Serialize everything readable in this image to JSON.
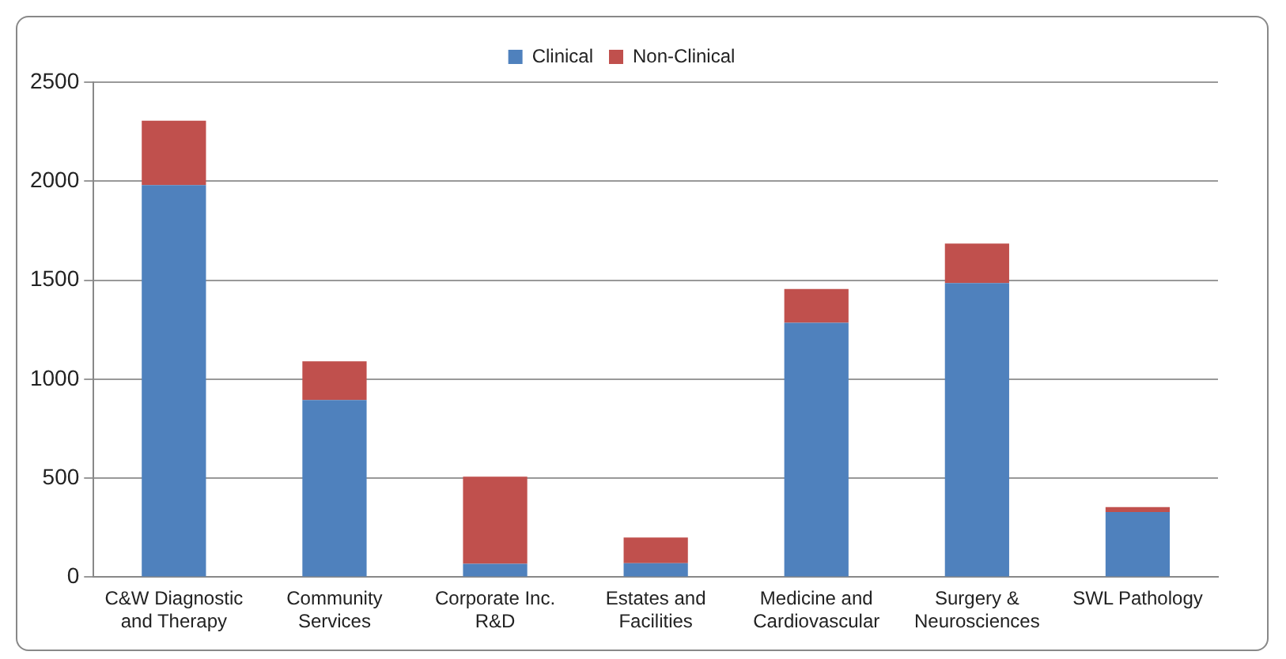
{
  "chart_data": {
    "type": "bar",
    "stacked": true,
    "categories": [
      "C&W Diagnostic and Therapy",
      "Community Services",
      "Corporate Inc. R&D",
      "Estates and Facilities",
      "Medicine and Cardiovascular",
      "Surgery & Neurosciences",
      "SWL Pathology"
    ],
    "series": [
      {
        "name": "Clinical",
        "color": "#4f81bd",
        "values": [
          1980,
          895,
          67,
          70,
          1285,
          1485,
          329
        ]
      },
      {
        "name": "Non-Clinical",
        "color": "#c0504d",
        "values": [
          325,
          195,
          440,
          130,
          170,
          200,
          25
        ]
      }
    ],
    "ylim": [
      0,
      2500
    ],
    "yticks": [
      0,
      500,
      1000,
      1500,
      2000,
      2500
    ],
    "grid": "y",
    "legend": "top"
  }
}
